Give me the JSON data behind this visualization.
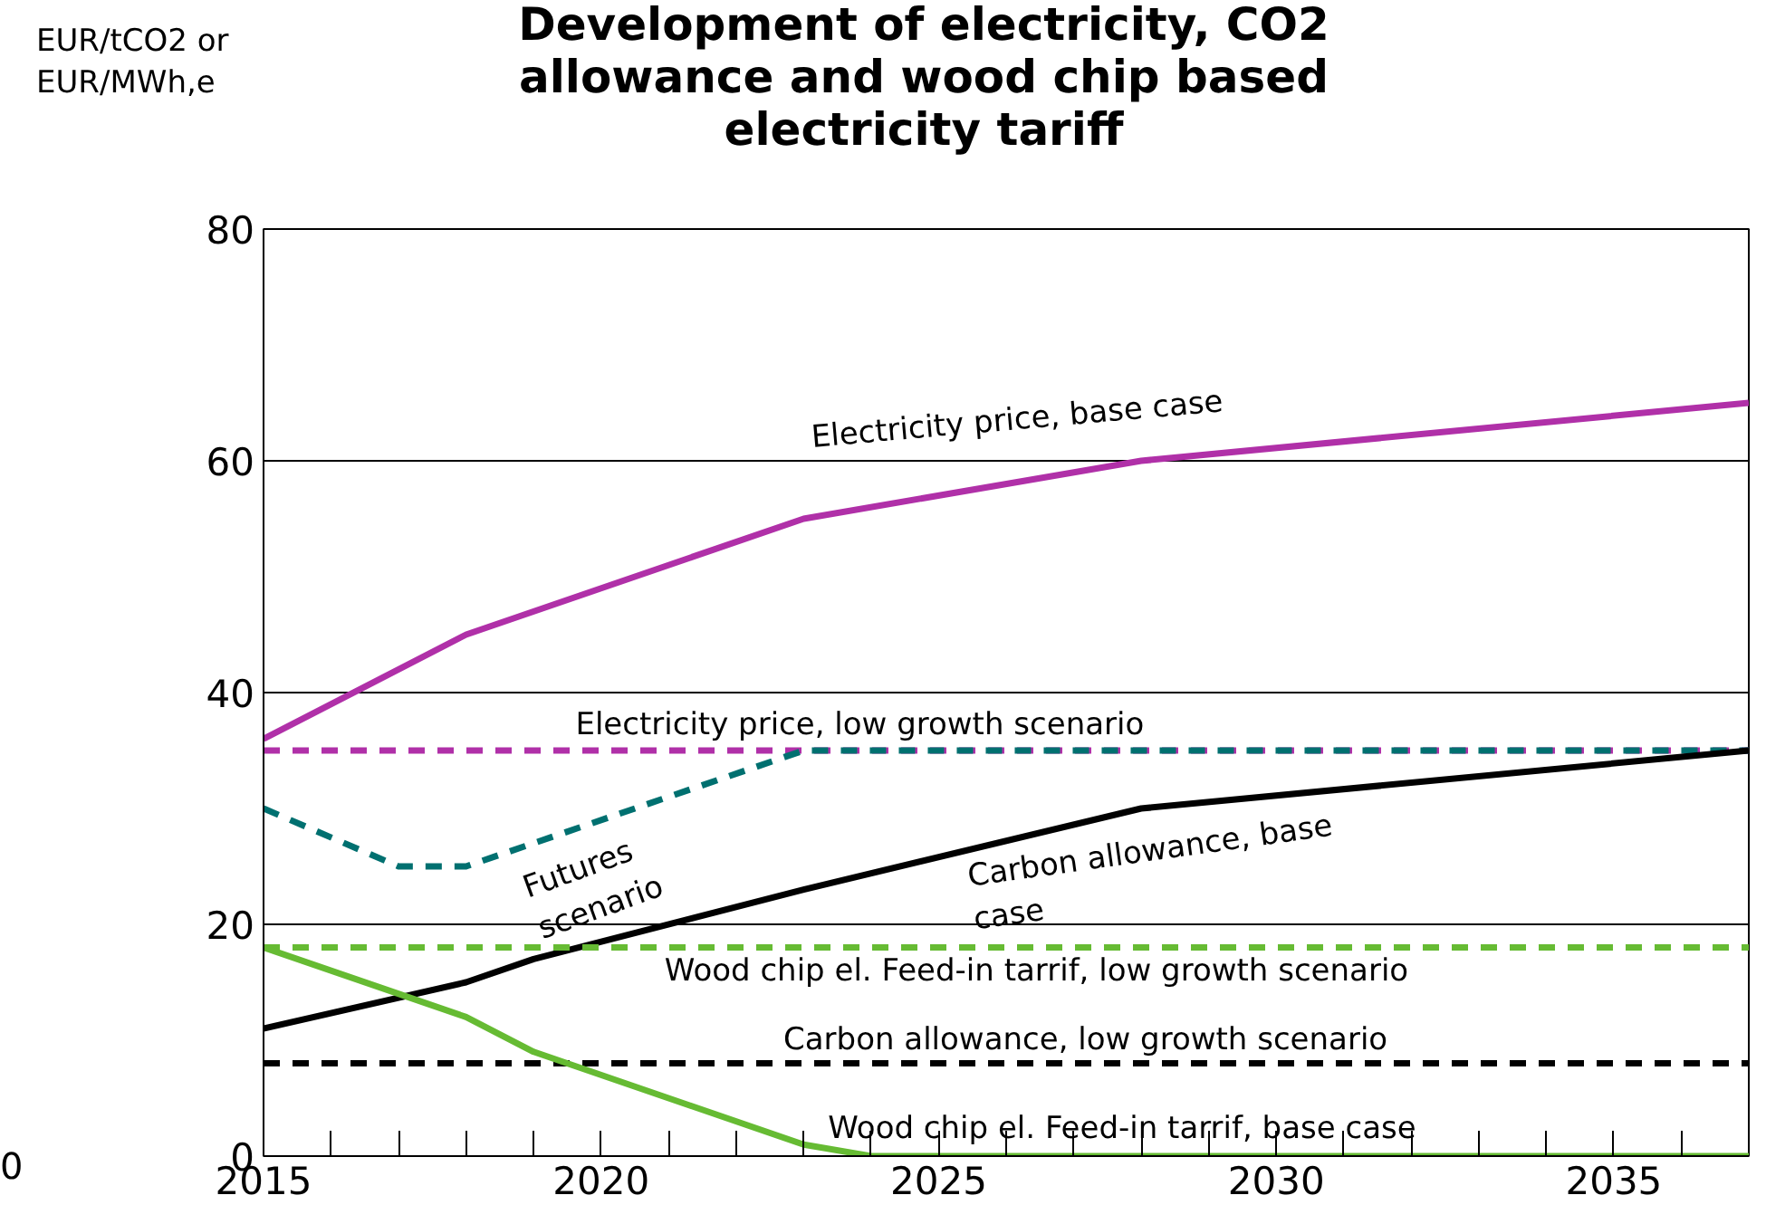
{
  "chart_data": {
    "type": "line",
    "title": "Development of electricity, CO2\nallowance and wood chip based\nelectricity tariff",
    "ylabel": "EUR/tCO2 or\nEUR/MWh,e",
    "xlim": [
      2015,
      2037
    ],
    "ylim": [
      0,
      80
    ],
    "xticks": [
      2015,
      {
        "value": 2016,
        "label": null
      },
      {
        "value": 2017,
        "label": null
      },
      {
        "value": 2018,
        "label": null
      },
      {
        "value": 2019,
        "label": null
      },
      2020,
      {
        "value": 2021,
        "label": null
      },
      {
        "value": 2022,
        "label": null
      },
      {
        "value": 2023,
        "label": null
      },
      {
        "value": 2024,
        "label": null
      },
      2025,
      {
        "value": 2026,
        "label": null
      },
      {
        "value": 2027,
        "label": null
      },
      {
        "value": 2028,
        "label": null
      },
      {
        "value": 2029,
        "label": null
      },
      2030,
      {
        "value": 2031,
        "label": null
      },
      {
        "value": 2032,
        "label": null
      },
      {
        "value": 2033,
        "label": null
      },
      {
        "value": 2034,
        "label": null
      },
      2035,
      {
        "value": 2036,
        "label": null
      }
    ],
    "yticks": [
      0,
      20,
      40,
      60,
      80
    ],
    "grid": "y",
    "series": [
      {
        "color": "#b030a8",
        "line_style": "solid",
        "x": [
          2015,
          2018,
          2023,
          2028,
          2037
        ],
        "values": [
          36,
          45,
          55,
          60,
          65
        ]
      },
      {
        "color": "#b030a8",
        "line_style": "dashed",
        "x": [
          2015,
          2037
        ],
        "values": [
          35,
          35
        ]
      },
      {
        "color": "#007070",
        "line_style": "dashed",
        "x": [
          2015,
          2017,
          2018,
          2023,
          2037
        ],
        "values": [
          30,
          25,
          25,
          35,
          35
        ]
      },
      {
        "color": "#000000",
        "line_style": "solid",
        "x": [
          2015,
          2018,
          2019,
          2023,
          2028,
          2037
        ],
        "values": [
          11,
          15,
          17,
          23,
          30,
          35
        ]
      },
      {
        "color": "#000000",
        "line_style": "dashed",
        "x": [
          2015,
          2037
        ],
        "values": [
          8,
          8
        ]
      },
      {
        "color": "#66bb33",
        "line_style": "dashed",
        "x": [
          2015,
          2037
        ],
        "values": [
          18,
          18
        ]
      },
      {
        "color": "#66bb33",
        "line_style": "solid",
        "x": [
          2015,
          2018,
          2019,
          2023,
          2024,
          2037
        ],
        "values": [
          18,
          12,
          9,
          1,
          0,
          0
        ]
      }
    ],
    "annotations": [
      "Electricity price, base case",
      "Electricity price, low growth scenario",
      "Futures\nscenario",
      "Carbon allowance, base\ncase",
      "Wood chip el. Feed-in tarrif, low growth scenario",
      "Carbon allowance, low growth scenario",
      "Wood chip el. Feed-in tarrif, base case",
      "0"
    ]
  }
}
